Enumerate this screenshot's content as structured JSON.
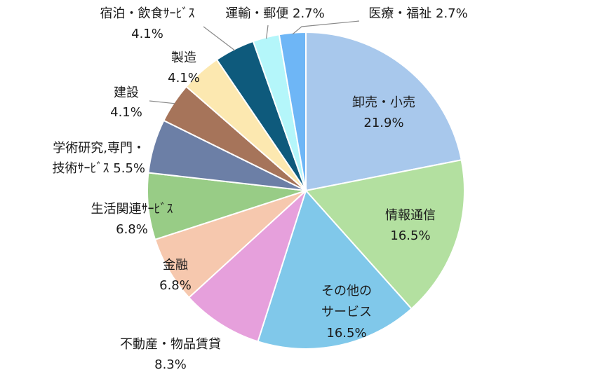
{
  "chart_data": {
    "type": "pie",
    "title": "",
    "start": "12 o'clock",
    "direction": "clockwise",
    "slices": [
      {
        "label": "卸売・小売",
        "value": 21.9,
        "pct_label": "21.9%",
        "color": "#a8c8ec",
        "label_style": "inside"
      },
      {
        "label": "情報通信",
        "value": 16.5,
        "pct_label": "16.5%",
        "color": "#b3e0a0",
        "label_style": "inside"
      },
      {
        "label": "その他のサービス",
        "value": 16.5,
        "pct_label": "16.5%",
        "color": "#80c8ea",
        "label_style": "inside"
      },
      {
        "label": "不動産・物品賃貸",
        "value": 8.3,
        "pct_label": "8.3%",
        "color": "#e6a0dc",
        "label_style": "outside"
      },
      {
        "label": "金融",
        "value": 6.8,
        "pct_label": "6.8%",
        "color": "#f6c8ae",
        "label_style": "outside"
      },
      {
        "label": "生活関連ｻｰﾋﾞｽ",
        "value": 6.8,
        "pct_label": "6.8%",
        "color": "#98cc86",
        "label_style": "outside"
      },
      {
        "label": "学術研究,専門・技術ｻｰﾋﾞｽ",
        "value": 5.5,
        "pct_label": "5.5%",
        "color": "#6c7fa6",
        "label_style": "outside"
      },
      {
        "label": "建設",
        "value": 4.1,
        "pct_label": "4.1%",
        "color": "#a6745a",
        "label_style": "outside"
      },
      {
        "label": "製造",
        "value": 4.1,
        "pct_label": "4.1%",
        "color": "#fce8b0",
        "label_style": "outside"
      },
      {
        "label": "宿泊・飲食ｻｰﾋﾞｽ",
        "value": 4.1,
        "pct_label": "4.1%",
        "color": "#0e5a7c",
        "label_style": "outside"
      },
      {
        "label": "運輸・郵便",
        "value": 2.7,
        "pct_label": "2.7%",
        "color": "#b4f6fa",
        "label_style": "outside"
      },
      {
        "label": "医療・福祉",
        "value": 2.7,
        "pct_label": "2.7%",
        "color": "#6eb6f6",
        "label_style": "outside"
      }
    ]
  }
}
